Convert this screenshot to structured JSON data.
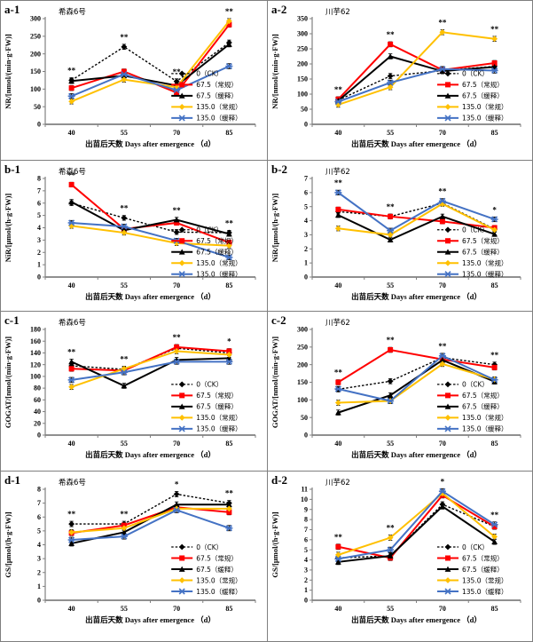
{
  "figure": {
    "border_color": "#7f7f7f",
    "axis_color": "#808080",
    "x_categories": [
      "40",
      "55",
      "70",
      "85"
    ],
    "x_axis_label": "出苗后天数 Days after emergence （d）",
    "legend_labels": [
      "0（CK）",
      "67.5（常规）",
      "67.5（缓释）",
      "135.0（常规）",
      "135.0（缓释）"
    ],
    "series_styles": [
      {
        "name": "0（CK）",
        "color": "#000000",
        "marker": "diamond",
        "line": "dotted"
      },
      {
        "name": "67.5（常规）",
        "color": "#ff0000",
        "marker": "square",
        "line": "solid"
      },
      {
        "name": "67.5（缓释）",
        "color": "#000000",
        "marker": "triangle",
        "line": "solid"
      },
      {
        "name": "135.0（常规）",
        "color": "#ffc000",
        "marker": "diamond",
        "line": "solid"
      },
      {
        "name": "135.0（缓释）",
        "color": "#4472c4",
        "marker": "x",
        "line": "solid"
      }
    ]
  },
  "chart_data": [
    {
      "id": "a-1",
      "type": "line",
      "variety": "希森6号",
      "ylabel": "NR/[nmol/(min·g·FW)]",
      "ylim": [
        0,
        300
      ],
      "ystep": 50,
      "x": [
        40,
        55,
        70,
        85
      ],
      "series": [
        {
          "name": "0（CK）",
          "values": [
            125,
            220,
            122,
            232
          ]
        },
        {
          "name": "67.5（常规）",
          "values": [
            103,
            150,
            90,
            283
          ]
        },
        {
          "name": "67.5（缓释）",
          "values": [
            123,
            138,
            110,
            227
          ]
        },
        {
          "name": "135.0（常规）",
          "values": [
            65,
            127,
            105,
            293
          ]
        },
        {
          "name": "135.0（缓释）",
          "values": [
            80,
            142,
            97,
            165
          ]
        }
      ],
      "sig_marks": [
        "**",
        "**",
        "**",
        "**"
      ]
    },
    {
      "id": "a-2",
      "type": "line",
      "variety": "川芋62",
      "ylabel": "NR/[nmol/(min·g·FW)]",
      "ylim": [
        0,
        350
      ],
      "ystep": 50,
      "x": [
        40,
        55,
        70,
        85
      ],
      "series": [
        {
          "name": "0（CK）",
          "values": [
            80,
            160,
            178,
            192
          ]
        },
        {
          "name": "67.5（常规）",
          "values": [
            83,
            265,
            180,
            203
          ]
        },
        {
          "name": "67.5（缓释）",
          "values": [
            78,
            225,
            176,
            190
          ]
        },
        {
          "name": "135.0（常规）",
          "values": [
            65,
            123,
            305,
            283
          ]
        },
        {
          "name": "135.0（缓释）",
          "values": [
            75,
            138,
            183,
            178
          ]
        }
      ],
      "sig_marks": [
        "**",
        "**",
        "**",
        "**"
      ]
    },
    {
      "id": "b-1",
      "type": "line",
      "variety": "希森6号",
      "ylabel": "NiR/[μmol/(h·g·FW)]",
      "ylim": [
        0,
        8
      ],
      "ystep": 1,
      "x": [
        40,
        55,
        70,
        85
      ],
      "series": [
        {
          "name": "0（CK）",
          "values": [
            6.0,
            4.8,
            3.65,
            3.6
          ]
        },
        {
          "name": "67.5（常规）",
          "values": [
            7.5,
            3.9,
            4.4,
            2.8
          ]
        },
        {
          "name": "67.5（缓释）",
          "values": [
            6.1,
            3.8,
            4.65,
            3.5
          ]
        },
        {
          "name": "135.0（常规）",
          "values": [
            4.15,
            3.6,
            2.75,
            2.55
          ]
        },
        {
          "name": "135.0（缓释）",
          "values": [
            4.4,
            4.1,
            2.95,
            1.6
          ]
        }
      ],
      "sig_marks": [
        "**",
        "**",
        "**",
        "**"
      ]
    },
    {
      "id": "b-2",
      "type": "line",
      "variety": "川芋62",
      "ylabel": "NiR/[μmol/(h·g·FW)]",
      "ylim": [
        0,
        7
      ],
      "ystep": 1,
      "x": [
        40,
        55,
        70,
        85
      ],
      "series": [
        {
          "name": "0（CK）",
          "values": [
            4.65,
            4.3,
            5.25,
            3.4
          ]
        },
        {
          "name": "67.5（常规）",
          "values": [
            4.8,
            4.3,
            3.95,
            3.5
          ]
        },
        {
          "name": "67.5（缓释）",
          "values": [
            4.4,
            2.65,
            4.3,
            3.05
          ]
        },
        {
          "name": "135.0（常规）",
          "values": [
            3.45,
            3.0,
            5.2,
            3.35
          ]
        },
        {
          "name": "135.0（缓释）",
          "values": [
            6.0,
            3.3,
            5.4,
            4.1
          ]
        }
      ],
      "sig_marks": [
        "**",
        "**",
        "**",
        "*"
      ]
    },
    {
      "id": "c-1",
      "type": "line",
      "variety": "希森6号",
      "ylabel": "GOGAT/[nmol/(min·g·FW)]",
      "ylim": [
        0,
        180
      ],
      "ystep": 20,
      "x": [
        40,
        55,
        70,
        85
      ],
      "series": [
        {
          "name": "0（CK）",
          "values": [
            118,
            112,
            148,
            140
          ]
        },
        {
          "name": "67.5（常规）",
          "values": [
            113,
            110,
            150,
            143
          ]
        },
        {
          "name": "67.5（缓释）",
          "values": [
            125,
            84,
            128,
            131
          ]
        },
        {
          "name": "135.0（常规）",
          "values": [
            82,
            113,
            143,
            137
          ]
        },
        {
          "name": "135.0（缓释）",
          "values": [
            94,
            107,
            125,
            125
          ]
        }
      ],
      "sig_marks": [
        "**",
        "**",
        "**",
        "*"
      ]
    },
    {
      "id": "c-2",
      "type": "line",
      "variety": "川芋62",
      "ylabel": "GOGAT/[nmol/(min·g·FW)]",
      "ylim": [
        0,
        300
      ],
      "ystep": 50,
      "x": [
        40,
        55,
        70,
        85
      ],
      "series": [
        {
          "name": "0（CK）",
          "values": [
            130,
            153,
            220,
            200
          ]
        },
        {
          "name": "67.5（常规）",
          "values": [
            150,
            242,
            215,
            192
          ]
        },
        {
          "name": "67.5（缓释）",
          "values": [
            64,
            113,
            213,
            152
          ]
        },
        {
          "name": "135.0（常规）",
          "values": [
            92,
            97,
            202,
            158
          ]
        },
        {
          "name": "135.0（缓释）",
          "values": [
            131,
            97,
            225,
            157
          ]
        }
      ],
      "sig_marks": [
        "**",
        "**",
        "**",
        "**"
      ]
    },
    {
      "id": "d-1",
      "type": "line",
      "variety": "希森6号",
      "ylabel": "GS/[μmol/(h·g·FW)]",
      "ylim": [
        0,
        8
      ],
      "ystep": 1,
      "x": [
        40,
        55,
        70,
        85
      ],
      "series": [
        {
          "name": "0（CK）",
          "values": [
            5.5,
            5.5,
            7.65,
            7.0
          ]
        },
        {
          "name": "67.5（常规）",
          "values": [
            4.85,
            5.4,
            6.7,
            6.35
          ]
        },
        {
          "name": "67.5（缓释）",
          "values": [
            4.1,
            4.9,
            6.9,
            6.9
          ]
        },
        {
          "name": "135.0（常规）",
          "values": [
            4.9,
            5.2,
            6.6,
            6.6
          ]
        },
        {
          "name": "135.0（缓释）",
          "values": [
            4.35,
            4.6,
            6.5,
            5.2
          ]
        }
      ],
      "sig_marks": [
        "**",
        "**",
        "*",
        "**"
      ]
    },
    {
      "id": "d-2",
      "type": "line",
      "variety": "川芋62",
      "ylabel": "GS/[μmol/(h·g·FW)]",
      "ylim": [
        0,
        11
      ],
      "ystep": 1,
      "x": [
        40,
        55,
        70,
        85
      ],
      "series": [
        {
          "name": "0（CK）",
          "values": [
            4.2,
            4.4,
            9.5,
            7.3
          ]
        },
        {
          "name": "67.5（常规）",
          "values": [
            5.3,
            4.2,
            10.4,
            7.3
          ]
        },
        {
          "name": "67.5（缓释）",
          "values": [
            3.8,
            4.4,
            9.3,
            5.8
          ]
        },
        {
          "name": "135.0（常规）",
          "values": [
            4.5,
            6.2,
            10.6,
            6.3
          ]
        },
        {
          "name": "135.0（缓释）",
          "values": [
            4.1,
            5.0,
            10.8,
            7.5
          ]
        }
      ],
      "sig_marks": [
        "**",
        "**",
        "*",
        "**"
      ]
    }
  ]
}
